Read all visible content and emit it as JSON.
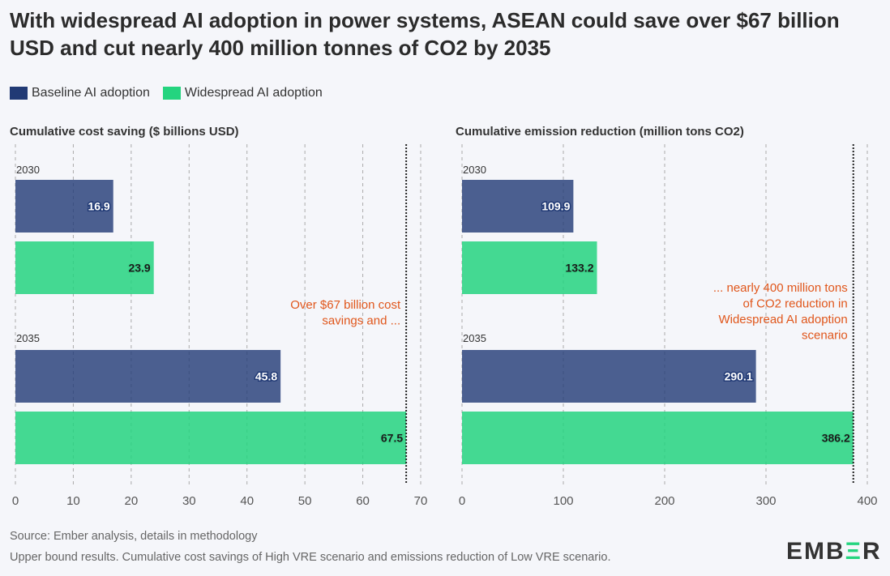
{
  "title": "With widespread AI adoption in power systems, ASEAN could save over $67 billion USD and cut nearly 400 million tonnes of CO2 by 2035",
  "legend": [
    {
      "label": "Baseline AI adoption",
      "color": "#213a75"
    },
    {
      "label": "Widespread AI adoption",
      "color": "#24d47f"
    }
  ],
  "chart_data": [
    {
      "type": "bar",
      "title": "Cumulative cost saving ($ billions USD)",
      "categories": [
        "2030",
        "2035"
      ],
      "series": [
        {
          "name": "Baseline AI adoption",
          "values": [
            16.9,
            45.8
          ]
        },
        {
          "name": "Widespread AI adoption",
          "values": [
            23.9,
            67.5
          ]
        }
      ],
      "xlim": [
        0,
        70
      ],
      "ticks": [
        0,
        10,
        20,
        30,
        40,
        50,
        60,
        70
      ],
      "reference": 67.5,
      "annotation": "Over $67 billion cost savings and ...",
      "grid": true
    },
    {
      "type": "bar",
      "title": "Cumulative emission reduction (million tons CO2)",
      "categories": [
        "2030",
        "2035"
      ],
      "series": [
        {
          "name": "Baseline AI adoption",
          "values": [
            109.9,
            290.1
          ]
        },
        {
          "name": "Widespread AI adoption",
          "values": [
            133.2,
            386.2
          ]
        }
      ],
      "xlim": [
        0,
        400
      ],
      "ticks": [
        0,
        100,
        200,
        300,
        400
      ],
      "reference": 386.2,
      "annotation": "... nearly 400 million tons of CO2 reduction in Widespread AI adoption scenario",
      "grid": true
    }
  ],
  "footer": {
    "source": "Source: Ember analysis, details in methodology",
    "note": "Upper bound results. Cumulative cost savings of High VRE scenario and emissions reduction of Low VRE scenario."
  },
  "logo": "EMBER"
}
